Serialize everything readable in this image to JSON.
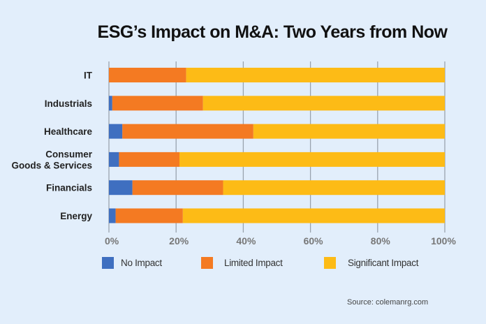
{
  "chart_data": {
    "type": "bar",
    "orientation": "horizontal",
    "stacked": true,
    "title": "ESG’s Impact on M&A: Two Years from Now",
    "categories": [
      "IT",
      "Industrials",
      "Healthcare",
      "Consumer Goods & Services",
      "Financials",
      "Energy"
    ],
    "category_lines": [
      [
        "IT"
      ],
      [
        "Industrials"
      ],
      [
        "Healthcare"
      ],
      [
        "Consumer",
        "Goods & Services"
      ],
      [
        "Financials"
      ],
      [
        "Energy"
      ]
    ],
    "series": [
      {
        "name": "No Impact",
        "color": "#3f6fc0",
        "values": [
          0,
          1,
          4,
          3,
          7,
          2
        ]
      },
      {
        "name": "Limited Impact",
        "color": "#f47a22",
        "values": [
          23,
          27,
          39,
          18,
          27,
          20
        ]
      },
      {
        "name": "Significant Impact",
        "color": "#fdbb16",
        "values": [
          77,
          72,
          57,
          79,
          66,
          78
        ]
      }
    ],
    "xlim": [
      0,
      100
    ],
    "x_ticks": [
      "0%",
      "20%",
      "40%",
      "60%",
      "80%",
      "100%"
    ],
    "grid": true,
    "legend_placement": "bottom",
    "source": "Source: colemanrg.com"
  }
}
